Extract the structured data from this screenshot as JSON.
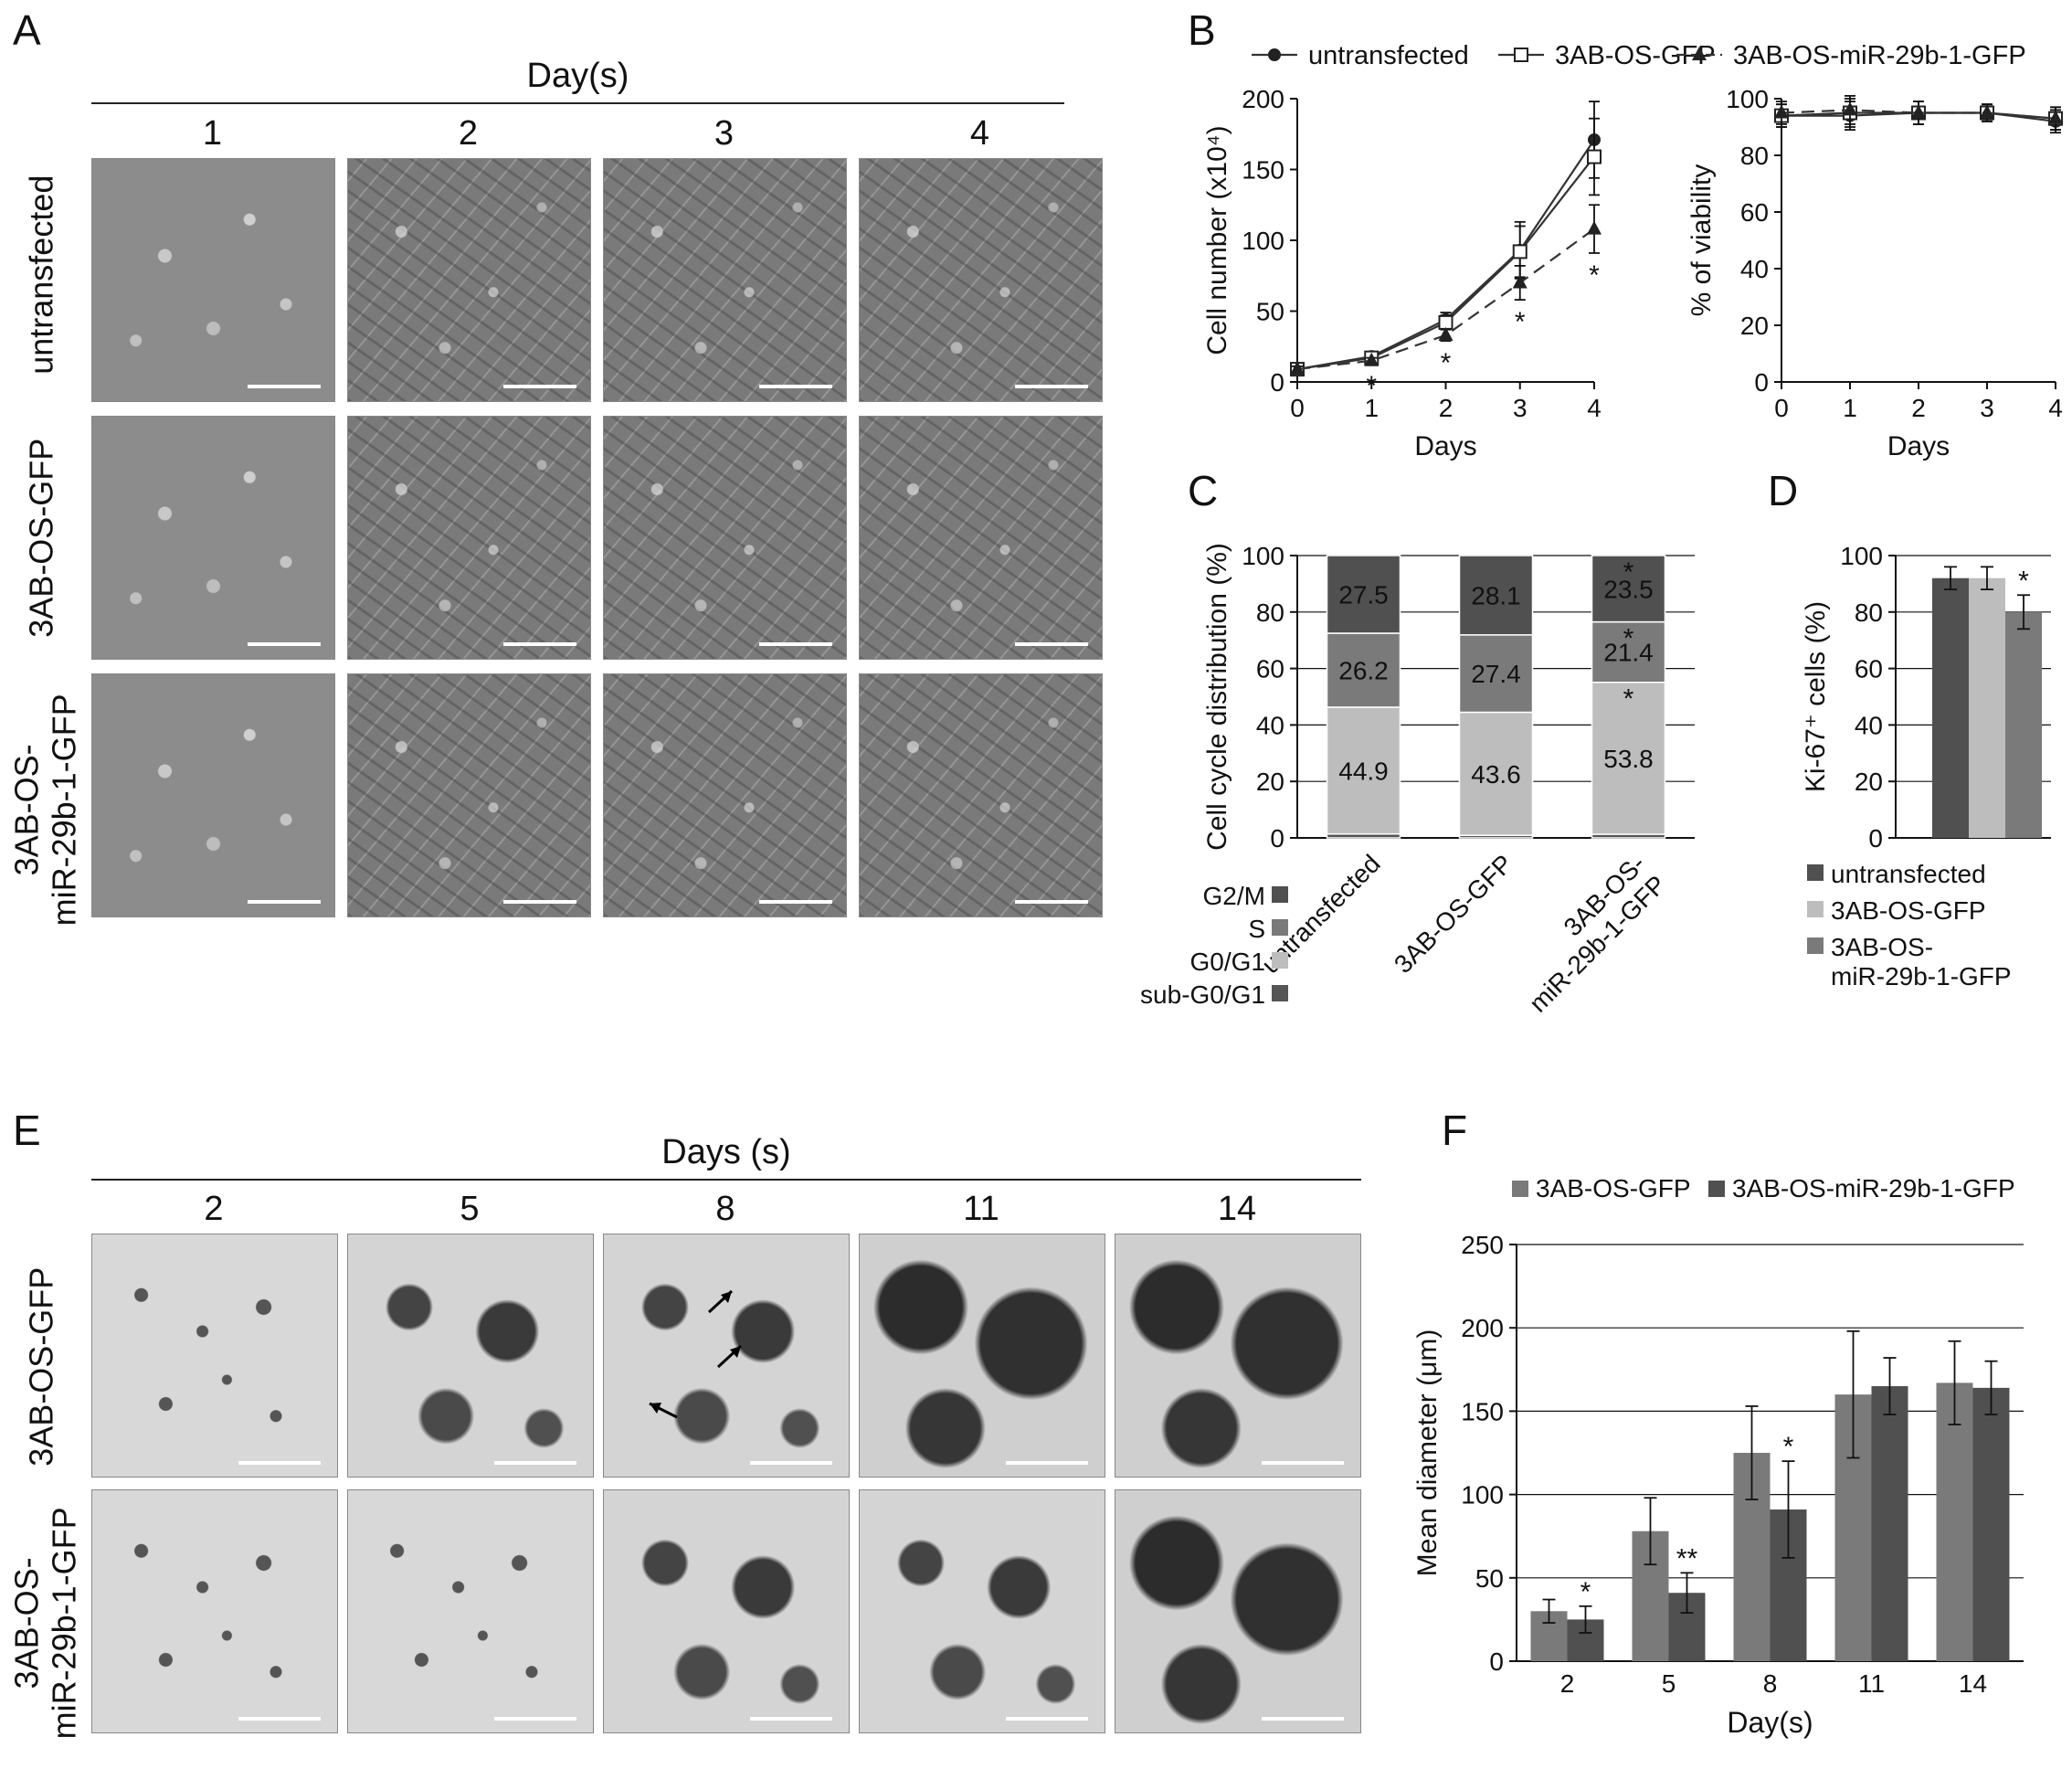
{
  "panels": {
    "a": {
      "letter": "A",
      "title": "Day(s)",
      "columns": [
        "1",
        "2",
        "3",
        "4"
      ],
      "rows": [
        "untransfected",
        "3AB-OS-GFP",
        "3AB-OS-\nmiR-29b-1-GFP"
      ]
    },
    "b": {
      "letter": "B"
    },
    "c": {
      "letter": "C"
    },
    "d": {
      "letter": "D"
    },
    "e": {
      "letter": "E",
      "title": "Days (s)",
      "columns": [
        "2",
        "5",
        "8",
        "11",
        "14"
      ],
      "rows": [
        "3AB-OS-GFP",
        "3AB-OS-\nmiR-29b-1-GFP"
      ]
    },
    "f": {
      "letter": "F"
    }
  },
  "colors": {
    "dark": "#505050",
    "mid": "#7a7a7a",
    "light": "#bdbdbd",
    "line": "#3a3a3a"
  },
  "chart_data": [
    {
      "id": "B-left",
      "type": "line",
      "xlabel": "Days",
      "ylabel": "Cell number (x10⁴)",
      "x": [
        0,
        1,
        2,
        3,
        4
      ],
      "xlim": [
        0,
        4
      ],
      "ylim": [
        0,
        200
      ],
      "yticks": [
        0,
        50,
        100,
        150,
        200
      ],
      "legend": [
        "untransfected",
        "3AB-OS-GFP",
        "3AB-OS-miR-29b-1-GFP"
      ],
      "series": [
        {
          "name": "untransfected",
          "values": [
            9,
            18,
            44,
            93,
            171
          ],
          "err": [
            2,
            2,
            5,
            20,
            27
          ],
          "marker": "filled-circle",
          "dash": false
        },
        {
          "name": "3AB-OS-GFP",
          "values": [
            9,
            17,
            42,
            92,
            159
          ],
          "err": [
            2,
            2,
            5,
            18,
            27
          ],
          "marker": "open-square",
          "dash": false
        },
        {
          "name": "3AB-OS-miR-29b-1-GFP",
          "values": [
            9,
            15,
            33,
            70,
            108
          ],
          "err": [
            2,
            2,
            4,
            12,
            17
          ],
          "marker": "filled-triangle",
          "dash": true
        }
      ],
      "annotations": [
        "*",
        "*",
        "*",
        "*"
      ],
      "annotation_x": [
        1,
        2,
        3,
        4
      ]
    },
    {
      "id": "B-right",
      "type": "line",
      "xlabel": "Days",
      "ylabel": "% of viability",
      "x": [
        0,
        1,
        2,
        3,
        4
      ],
      "xlim": [
        0,
        4
      ],
      "ylim": [
        0,
        100
      ],
      "yticks": [
        0,
        20,
        40,
        60,
        80,
        100
      ],
      "series": [
        {
          "name": "untransfected",
          "values": [
            94,
            94,
            95,
            95,
            92
          ],
          "err": [
            4,
            5,
            4,
            3,
            4
          ]
        },
        {
          "name": "3AB-OS-GFP",
          "values": [
            94,
            95,
            95,
            95,
            93
          ],
          "err": [
            4,
            5,
            4,
            3,
            4
          ]
        },
        {
          "name": "3AB-OS-miR-29b-1-GFP",
          "values": [
            95,
            96,
            95,
            95,
            93
          ],
          "err": [
            4,
            5,
            4,
            3,
            4
          ]
        }
      ]
    },
    {
      "id": "C",
      "type": "bar",
      "stacked": true,
      "ylabel": "Cell cycle distribution (%)",
      "categories": [
        "untransfected",
        "3AB-OS-GFP",
        "3AB-OS-\nmiR-29b-1-GFP"
      ],
      "ylim": [
        0,
        100
      ],
      "yticks": [
        0,
        20,
        40,
        60,
        80,
        100
      ],
      "legend": [
        "G2/M",
        "S",
        "G0/G1",
        "sub-G0/G1"
      ],
      "series": [
        {
          "name": "sub-G0/G1",
          "values": [
            1.4,
            0.9,
            1.3
          ]
        },
        {
          "name": "G0/G1",
          "values": [
            44.9,
            43.6,
            53.8
          ]
        },
        {
          "name": "S",
          "values": [
            26.2,
            27.4,
            21.4
          ]
        },
        {
          "name": "G2/M",
          "values": [
            27.5,
            28.1,
            23.5
          ]
        }
      ],
      "labels": {
        "G0/G1": [
          "44.9",
          "43.6",
          "53.8"
        ],
        "S": [
          "26.2",
          "27.4",
          "21.4"
        ],
        "G2/M": [
          "27.5",
          "28.1",
          "23.5"
        ]
      },
      "stars": [
        "*",
        "*",
        "*"
      ]
    },
    {
      "id": "D",
      "type": "bar",
      "ylabel": "Ki-67⁺ cells (%)",
      "categories": [
        "untransfected",
        "3AB-OS-GFP",
        "3AB-OS-\nmiR-29b-1-GFP"
      ],
      "values": [
        92,
        92,
        80
      ],
      "err": [
        4,
        4,
        6
      ],
      "ylim": [
        0,
        100
      ],
      "yticks": [
        0,
        20,
        40,
        60,
        80,
        100
      ],
      "legend": [
        "untransfected",
        "3AB-OS-GFP",
        "3AB-OS-\nmiR-29b-1-GFP"
      ],
      "stars": [
        "",
        "",
        "*"
      ]
    },
    {
      "id": "F",
      "type": "bar",
      "xlabel": "Day(s)",
      "ylabel": "Mean diameter (μm)",
      "categories": [
        "2",
        "5",
        "8",
        "11",
        "14"
      ],
      "ylim": [
        0,
        250
      ],
      "yticks": [
        0,
        50,
        100,
        150,
        200,
        250
      ],
      "legend": [
        "3AB-OS-GFP",
        "3AB-OS-miR-29b-1-GFP"
      ],
      "series": [
        {
          "name": "3AB-OS-GFP",
          "values": [
            30,
            78,
            125,
            160,
            167
          ],
          "err": [
            7,
            20,
            28,
            38,
            25
          ]
        },
        {
          "name": "3AB-OS-miR-29b-1-GFP",
          "values": [
            25,
            41,
            91,
            165,
            164
          ],
          "err": [
            8,
            12,
            29,
            17,
            16
          ]
        }
      ],
      "stars": [
        "*",
        "**",
        "*",
        "",
        ""
      ]
    }
  ]
}
